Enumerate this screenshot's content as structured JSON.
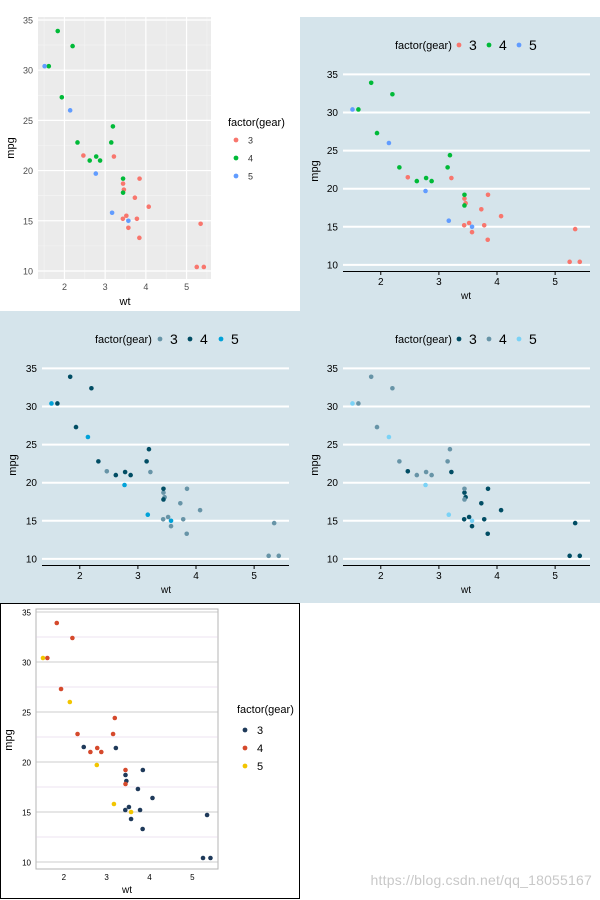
{
  "watermark": "https://blog.csdn.net/qq_18055167",
  "shared_data": {
    "wt": [
      2.62,
      2.875,
      2.32,
      3.215,
      3.44,
      3.46,
      3.57,
      3.19,
      3.15,
      3.44,
      3.44,
      4.07,
      3.73,
      3.78,
      5.25,
      5.424,
      5.345,
      2.2,
      1.615,
      1.835,
      2.465,
      3.52,
      3.435,
      3.84,
      3.845,
      1.935,
      2.14,
      1.513,
      3.17,
      2.77,
      3.57,
      2.78
    ],
    "mpg": [
      21.0,
      21.0,
      22.8,
      21.4,
      18.7,
      18.1,
      14.3,
      24.4,
      22.8,
      19.2,
      17.8,
      16.4,
      17.3,
      15.2,
      10.4,
      10.4,
      14.7,
      32.4,
      30.4,
      33.9,
      21.5,
      15.5,
      15.2,
      13.3,
      19.2,
      27.3,
      26.0,
      30.4,
      15.8,
      19.7,
      15.0,
      21.4
    ],
    "gear": [
      4,
      4,
      4,
      3,
      3,
      3,
      3,
      4,
      4,
      4,
      4,
      3,
      3,
      3,
      3,
      3,
      3,
      4,
      4,
      4,
      3,
      3,
      3,
      3,
      3,
      4,
      5,
      5,
      5,
      5,
      5,
      4
    ]
  },
  "chart_data": [
    {
      "type": "scatter",
      "theme": "ggplot2 default grey",
      "xlabel": "wt",
      "ylabel": "mpg",
      "x_ticks": [
        "2",
        "3",
        "4",
        "5"
      ],
      "y_ticks": [
        "10",
        "15",
        "20",
        "25",
        "30",
        "35"
      ],
      "xlim": [
        1.35,
        5.6
      ],
      "ylim": [
        9.2,
        35.3
      ],
      "legend_position": "right",
      "legend": {
        "title": "factor(gear)",
        "entries": [
          "3",
          "4",
          "5"
        ],
        "colors": [
          "#f8766d",
          "#00ba38",
          "#619cff"
        ]
      }
    },
    {
      "type": "scatter",
      "theme": "economist",
      "xlabel": "wt",
      "ylabel": "mpg",
      "x_ticks": [
        "2",
        "3",
        "4",
        "5"
      ],
      "y_ticks": [
        "10",
        "15",
        "20",
        "25",
        "30",
        "35"
      ],
      "xlim": [
        1.35,
        5.6
      ],
      "ylim": [
        9.2,
        36.5
      ],
      "legend_position": "top",
      "legend": {
        "title": "factor(gear)",
        "entries": [
          "3",
          "4",
          "5"
        ],
        "colors": [
          "#f8766d",
          "#00ba38",
          "#619cff"
        ]
      }
    },
    {
      "type": "scatter",
      "theme": "economist",
      "xlabel": "wt",
      "ylabel": "mpg",
      "x_ticks": [
        "2",
        "3",
        "4",
        "5"
      ],
      "y_ticks": [
        "10",
        "15",
        "20",
        "25",
        "30",
        "35"
      ],
      "xlim": [
        1.35,
        5.6
      ],
      "ylim": [
        9.2,
        36.5
      ],
      "legend_position": "top",
      "legend": {
        "title": "factor(gear)",
        "entries": [
          "3",
          "4",
          "5"
        ],
        "colors": [
          "#6794a7",
          "#014d64",
          "#01a2d9"
        ]
      }
    },
    {
      "type": "scatter",
      "theme": "economist",
      "xlabel": "wt",
      "ylabel": "mpg",
      "x_ticks": [
        "2",
        "3",
        "4",
        "5"
      ],
      "y_ticks": [
        "10",
        "15",
        "20",
        "25",
        "30",
        "35"
      ],
      "xlim": [
        1.35,
        5.6
      ],
      "ylim": [
        9.2,
        36.5
      ],
      "legend_position": "top",
      "legend": {
        "title": "factor(gear)",
        "entries": [
          "3",
          "4",
          "5"
        ],
        "colors": [
          "#014d64",
          "#6794a7",
          "#7ad2f6"
        ]
      }
    },
    {
      "type": "scatter",
      "theme": "wall street journal style",
      "xlabel": "wt",
      "ylabel": "mpg",
      "x_ticks": [
        "2",
        "3",
        "4",
        "5"
      ],
      "y_ticks": [
        "10",
        "15",
        "20",
        "25",
        "30",
        "35"
      ],
      "xlim": [
        1.35,
        5.6
      ],
      "ylim": [
        9.3,
        35.3
      ],
      "legend_position": "right",
      "legend": {
        "title": "factor(gear)",
        "entries": [
          "3",
          "4",
          "5"
        ],
        "colors": [
          "#1f3a5a",
          "#d5492c",
          "#f2c500"
        ]
      }
    }
  ]
}
